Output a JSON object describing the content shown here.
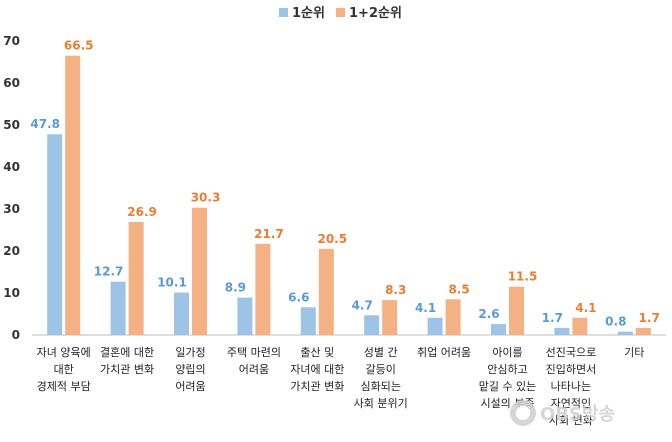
{
  "chart_data": {
    "type": "bar",
    "categories": [
      [
        "자녀 양육에",
        "대한",
        "경제적 부담"
      ],
      [
        "결혼에 대한",
        "가치관 변화"
      ],
      [
        "일가정",
        "양립의",
        "어려움"
      ],
      [
        "주택 마련의",
        "어려움"
      ],
      [
        "출산 및",
        "자녀에 대한",
        "가치관 변화"
      ],
      [
        "성별 간",
        "갈등이",
        "심화되는",
        "사회 분위기"
      ],
      [
        "취업 어려움"
      ],
      [
        "아이를",
        "안심하고",
        "맡길 수 있는",
        "시설의 부족"
      ],
      [
        "선진국으로",
        "진입하면서",
        "나타나는",
        "자연적인",
        "사회 변화"
      ],
      [
        "기타"
      ]
    ],
    "series": [
      {
        "name": "1순위",
        "color": "#9dc3e6",
        "label_color": "#5b9bd5",
        "values": [
          47.8,
          12.7,
          10.1,
          8.9,
          6.6,
          4.7,
          4.1,
          2.6,
          1.7,
          0.8
        ]
      },
      {
        "name": "1+2순위",
        "color": "#f4b183",
        "label_color": "#ed7d31",
        "values": [
          66.5,
          26.9,
          30.3,
          21.7,
          20.5,
          8.3,
          8.5,
          11.5,
          4.1,
          1.7
        ]
      }
    ],
    "yticks": [
      0,
      10,
      20,
      30,
      40,
      50,
      60,
      70
    ],
    "ylim": [
      0,
      70
    ],
    "grid": false,
    "legend": "top-center"
  },
  "watermark": "OBS방송"
}
